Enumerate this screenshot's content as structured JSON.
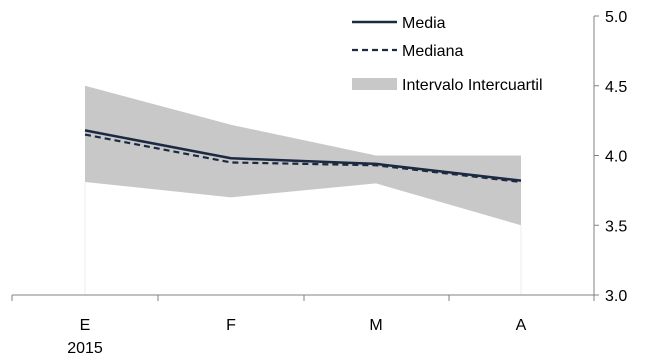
{
  "chart_data": {
    "type": "line",
    "categories": [
      "E",
      "F",
      "M",
      "A"
    ],
    "category_sublabels": [
      "2015",
      "",
      "",
      ""
    ],
    "ylim": [
      3.0,
      5.0
    ],
    "yticks": [
      "3.0",
      "3.5",
      "4.0",
      "4.5",
      "5.0"
    ],
    "ytick_values": [
      3.0,
      3.5,
      4.0,
      4.5,
      5.0
    ],
    "y_axis_side": "right",
    "grid": false,
    "legend_position": "top-right",
    "series": [
      {
        "name": "Media",
        "values": [
          4.18,
          3.98,
          3.94,
          3.82
        ],
        "style": "solid",
        "color": "#1b2a41"
      },
      {
        "name": "Mediana",
        "values": [
          4.15,
          3.95,
          3.93,
          3.81
        ],
        "style": "dashed",
        "color": "#1b2a41"
      }
    ],
    "band": {
      "name": "Intervalo Intercuartil",
      "lower": [
        3.81,
        3.7,
        3.8,
        3.5
      ],
      "upper": [
        4.5,
        4.22,
        4.0,
        4.0
      ],
      "color": "#c8c8c8"
    }
  }
}
